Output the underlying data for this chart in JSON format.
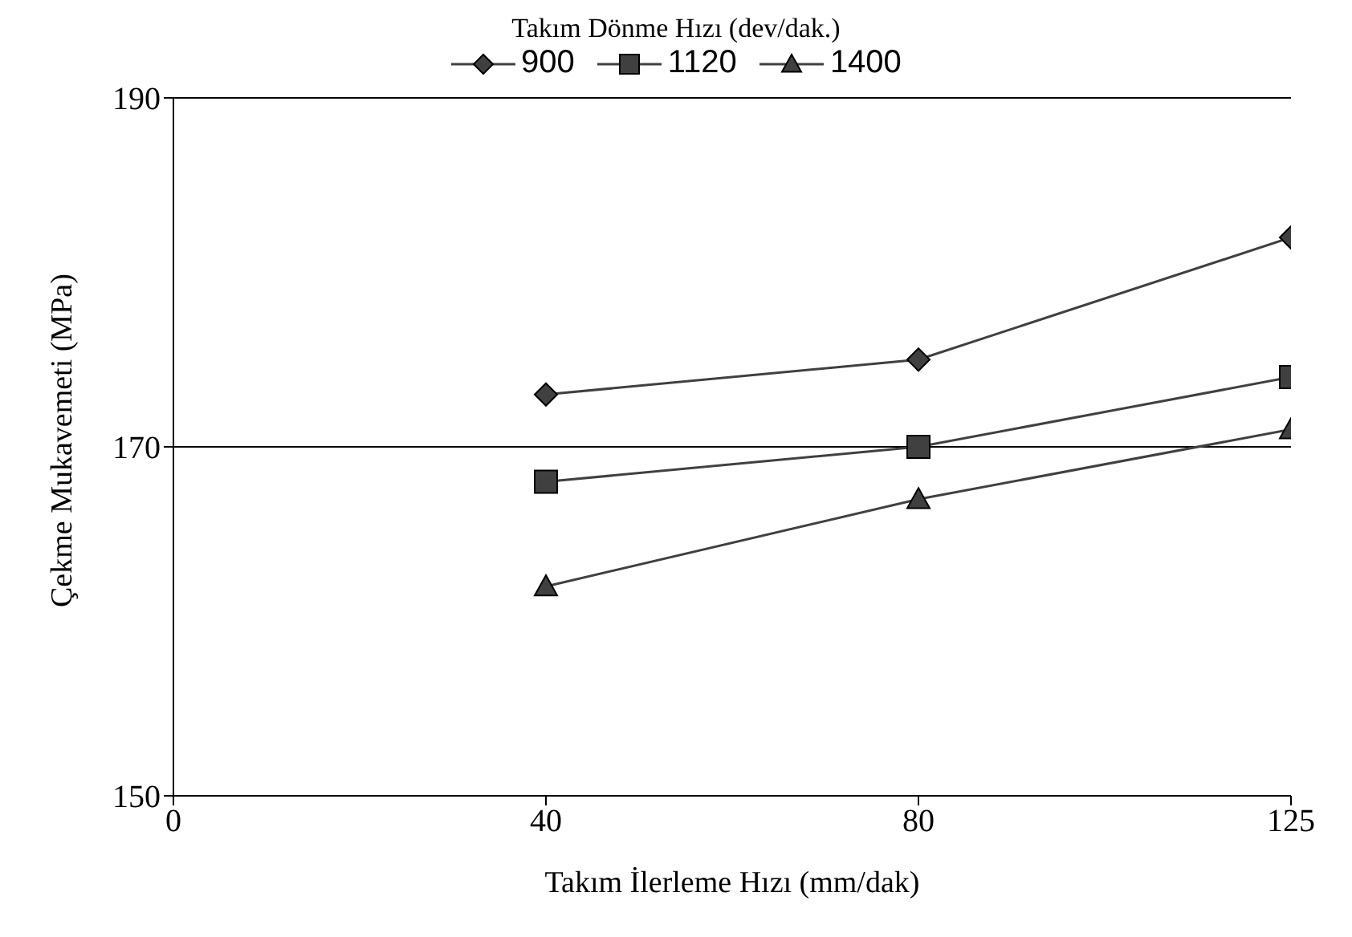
{
  "chart_data": {
    "type": "line",
    "legend_title": "Takım Dönme Hızı (dev/dak.)",
    "xlabel": "Takım İlerleme Hızı (mm/dak)",
    "ylabel": "Çekme Mukavemeti (MPa)",
    "categories": [
      "0",
      "40",
      "80",
      "125"
    ],
    "series": [
      {
        "name": "900",
        "color": "#404040",
        "marker": "diamond",
        "values": [
          null,
          173,
          175,
          182
        ]
      },
      {
        "name": "1120",
        "color": "#404040",
        "marker": "square",
        "values": [
          null,
          168,
          170,
          174
        ]
      },
      {
        "name": "1400",
        "color": "#404040",
        "marker": "triangle",
        "values": [
          null,
          162,
          167,
          171
        ]
      }
    ],
    "ylim": [
      150,
      190
    ],
    "yticks": [
      150,
      170,
      190
    ],
    "grid": "y",
    "legend": "top",
    "line_style": "solid"
  }
}
